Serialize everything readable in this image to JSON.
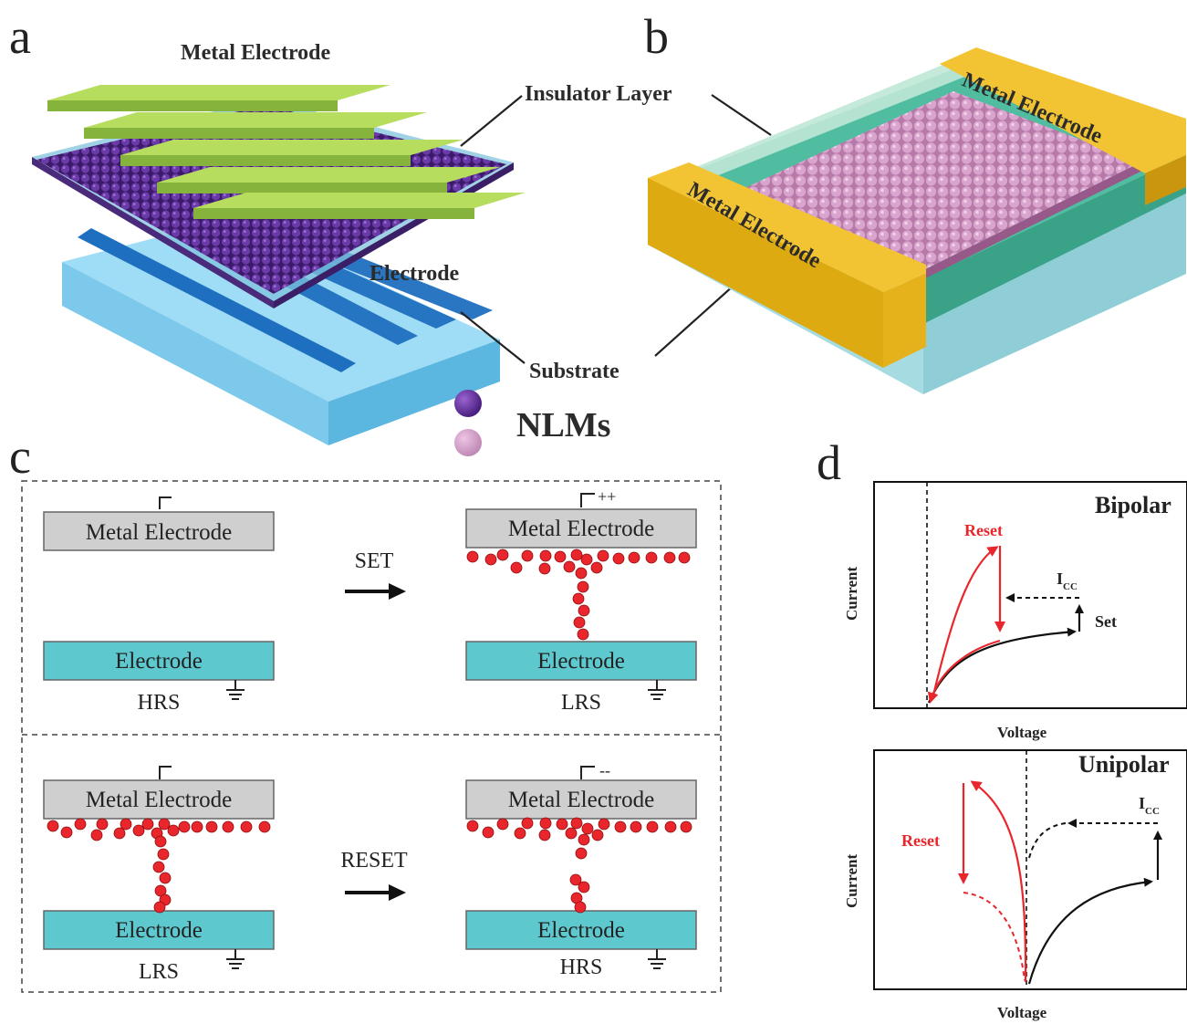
{
  "panels": {
    "a": {
      "letter": "a",
      "metal_electrode": "Metal Electrode",
      "electrode": "Electrode"
    },
    "b": {
      "letter": "b",
      "metal_electrode_top": "Metal Electrode",
      "metal_electrode_front": "Metal Electrode"
    },
    "shared": {
      "insulator_layer": "Insulator Layer",
      "substrate": "Substrate",
      "nlms": "NLMs"
    },
    "c": {
      "letter": "c",
      "metal_electrode": "Metal Electrode",
      "electrode": "Electrode",
      "set": "SET",
      "reset": "RESET",
      "hrs": "HRS",
      "lrs": "LRS",
      "plus": "++",
      "minus": "--"
    },
    "d": {
      "letter": "d",
      "bipolar": "Bipolar",
      "unipolar": "Unipolar",
      "current": "Current",
      "voltage": "Voltage",
      "reset": "Reset",
      "set": "Set",
      "icc_main": "I",
      "icc_sub": "CC"
    }
  },
  "colors": {
    "metal_green": "#a3cd4e",
    "insulator": "#86c4da",
    "dark_np": "#5b2c8d",
    "light_np": "#d39cc6",
    "substrate": "#7fd0f0",
    "bottom_electrode": "#1f6fc0",
    "gold": "#e8b51c",
    "teal_layer": "#4db99b",
    "schematic_electrode": "#5ec8cf",
    "schematic_metal": "#cfcfcf",
    "ion_red": "#e8262b"
  }
}
